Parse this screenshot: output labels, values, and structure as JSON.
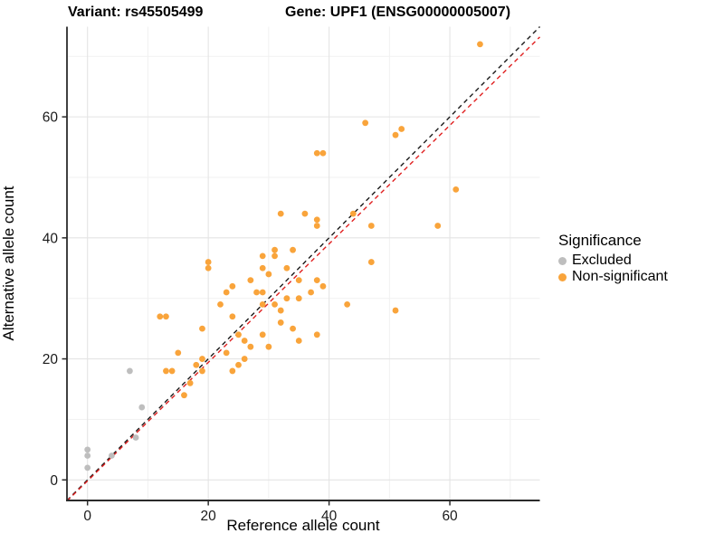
{
  "header": {
    "variant_title": "Variant: rs45505499",
    "gene_title": "Gene: UPF1 (ENSG00000005007)"
  },
  "chart_data": {
    "type": "scatter",
    "xlabel": "Reference allele count",
    "ylabel": "Alternative allele count",
    "xlim": [
      -3.4,
      74.9
    ],
    "ylim": [
      -3.4,
      74.9
    ],
    "x_ticks": [
      0,
      20,
      40,
      60
    ],
    "y_ticks": [
      0,
      20,
      40,
      60
    ],
    "x_minor_ticks": [
      10,
      30,
      50,
      70
    ],
    "y_minor_ticks": [
      10,
      30,
      50,
      70
    ],
    "grid": true,
    "colors": {
      "grid_major": "#e4e4e4",
      "grid_minor": "#f1f1f1",
      "axis": "#2b2b2b",
      "excluded": "#bebebe",
      "non_significant": "#f9a43b",
      "identity_line": "#1a1a1a",
      "fit_line": "#e02020"
    },
    "legend": {
      "title": "Significance",
      "position": "right",
      "entries": [
        {
          "label": "Excluded",
          "color": "#bebebe"
        },
        {
          "label": "Non-significant",
          "color": "#f9a43b"
        }
      ]
    },
    "reference_lines": [
      {
        "name": "identity",
        "color": "#1a1a1a",
        "dash": "5,4",
        "from": [
          -3.4,
          -3.4
        ],
        "to": [
          74.9,
          74.9
        ]
      },
      {
        "name": "fit",
        "color": "#e02020",
        "dash": "5,4",
        "from": [
          -3.4,
          -3.5
        ],
        "to": [
          74.9,
          73.2
        ]
      }
    ],
    "series": [
      {
        "name": "Excluded",
        "color": "#bebebe",
        "points": [
          [
            0,
            2
          ],
          [
            0,
            4
          ],
          [
            0,
            5
          ],
          [
            4,
            4
          ],
          [
            7,
            18
          ],
          [
            8,
            7
          ],
          [
            9,
            12
          ]
        ]
      },
      {
        "name": "Non-significant",
        "color": "#f9a43b",
        "points": [
          [
            12,
            27
          ],
          [
            13,
            27
          ],
          [
            13,
            18
          ],
          [
            14,
            18
          ],
          [
            15,
            21
          ],
          [
            16,
            14
          ],
          [
            17,
            16
          ],
          [
            18,
            19
          ],
          [
            19,
            18
          ],
          [
            19,
            20
          ],
          [
            19,
            25
          ],
          [
            20,
            35
          ],
          [
            20,
            36
          ],
          [
            22,
            29
          ],
          [
            23,
            21
          ],
          [
            23,
            31
          ],
          [
            24,
            18
          ],
          [
            24,
            27
          ],
          [
            24,
            32
          ],
          [
            25,
            19
          ],
          [
            25,
            24
          ],
          [
            26,
            20
          ],
          [
            26,
            23
          ],
          [
            27,
            22
          ],
          [
            27,
            33
          ],
          [
            28,
            31
          ],
          [
            29,
            24
          ],
          [
            29,
            29
          ],
          [
            29,
            31
          ],
          [
            29,
            35
          ],
          [
            29,
            37
          ],
          [
            30,
            22
          ],
          [
            30,
            34
          ],
          [
            31,
            29
          ],
          [
            31,
            37
          ],
          [
            31,
            38
          ],
          [
            32,
            26
          ],
          [
            32,
            28
          ],
          [
            32,
            44
          ],
          [
            33,
            30
          ],
          [
            33,
            35
          ],
          [
            34,
            25
          ],
          [
            34,
            38
          ],
          [
            35,
            23
          ],
          [
            35,
            30
          ],
          [
            35,
            33
          ],
          [
            36,
            44
          ],
          [
            37,
            31
          ],
          [
            38,
            24
          ],
          [
            38,
            33
          ],
          [
            38,
            42
          ],
          [
            38,
            43
          ],
          [
            38,
            54
          ],
          [
            39,
            32
          ],
          [
            39,
            54
          ],
          [
            43,
            29
          ],
          [
            44,
            44
          ],
          [
            46,
            59
          ],
          [
            47,
            36
          ],
          [
            47,
            42
          ],
          [
            51,
            28
          ],
          [
            51,
            57
          ],
          [
            52,
            58
          ],
          [
            58,
            42
          ],
          [
            61,
            48
          ],
          [
            65,
            72
          ]
        ]
      }
    ]
  }
}
